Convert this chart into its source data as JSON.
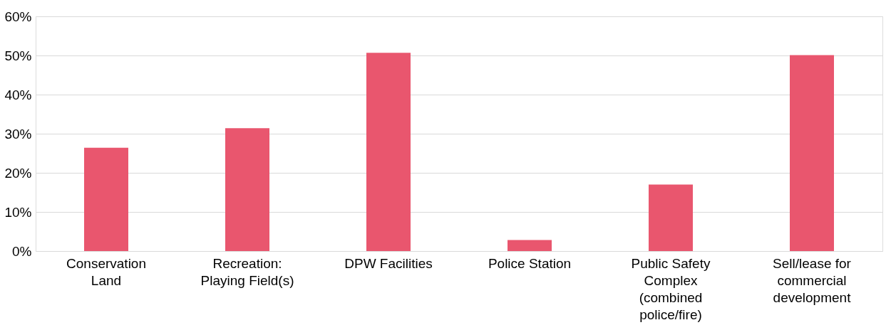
{
  "chart_data": {
    "type": "bar",
    "categories": [
      "Conservation Land",
      "Recreation: Playing Field(s)",
      "DPW Facilities",
      "Police Station",
      "Public Safety Complex (combined police/fire)",
      "Sell/lease for commercial development"
    ],
    "values": [
      26.4,
      31.4,
      50.7,
      2.8,
      17.0,
      50.1
    ],
    "color": "#e9566e",
    "ylim": [
      0,
      60
    ],
    "yticks": [
      {
        "value": 0,
        "label": "0%"
      },
      {
        "value": 10,
        "label": "10%"
      },
      {
        "value": 20,
        "label": "20%"
      },
      {
        "value": 30,
        "label": "30%"
      },
      {
        "value": 40,
        "label": "40%"
      },
      {
        "value": 50,
        "label": "50%"
      },
      {
        "value": 60,
        "label": "60%"
      }
    ],
    "grid": "y"
  }
}
